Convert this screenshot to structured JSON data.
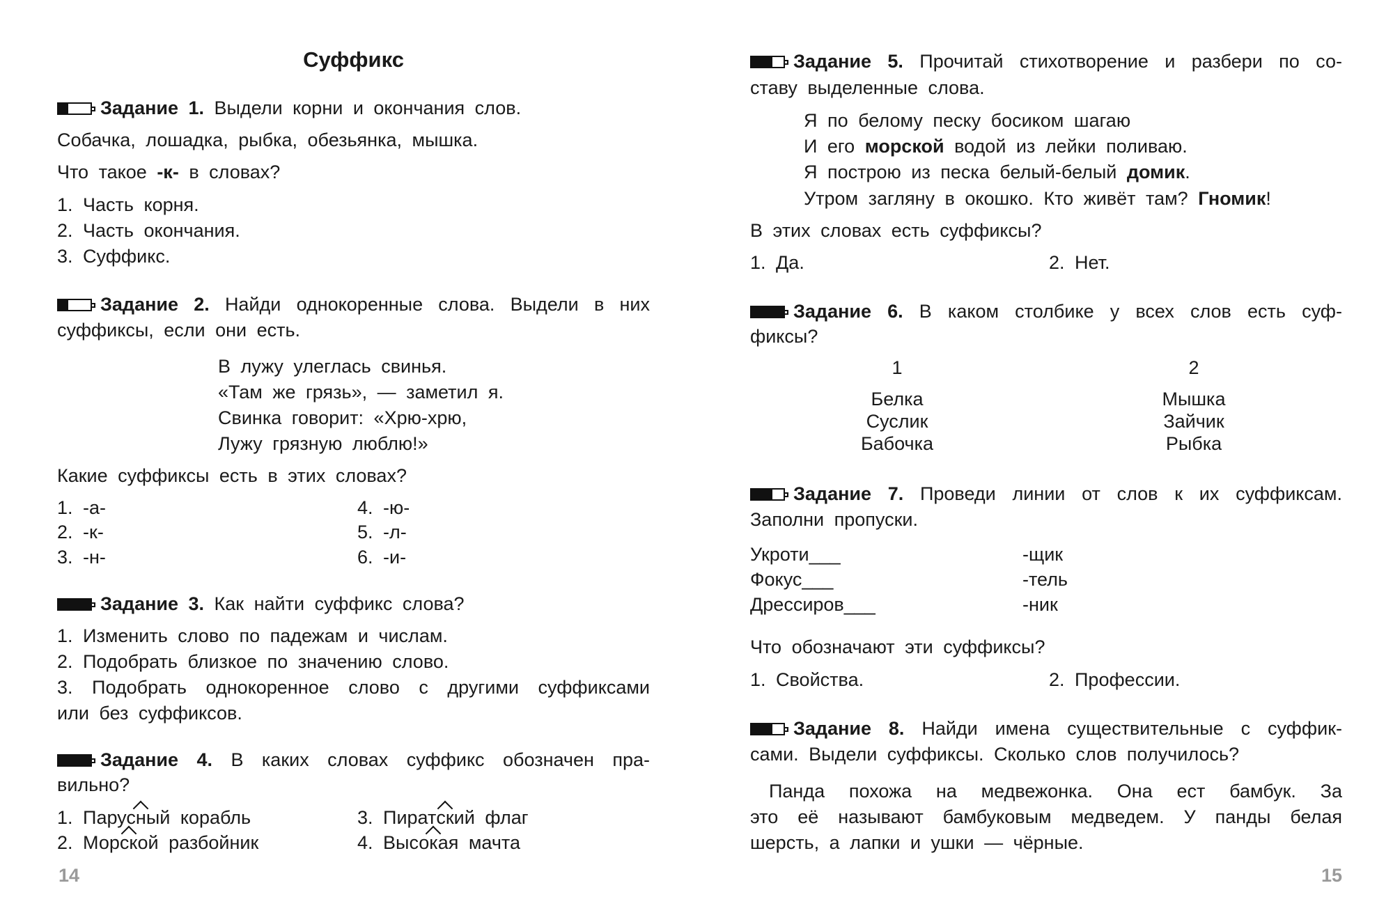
{
  "left": {
    "title": "Суффикс",
    "page": "14",
    "task1": {
      "label": "Задание 1.",
      "level": 0.3,
      "text": "Выдели корни и окончания слов.",
      "words": "Собачка, лошадка, рыбка, обезьянка, мышка.",
      "q_pre": "Что такое ",
      "q_bold": "-к-",
      "q_post": " в словах?",
      "options": [
        "1. Часть корня.",
        "2. Часть окончания.",
        "3. Суффикс."
      ]
    },
    "task2": {
      "label": "Задание 2.",
      "level": 0.3,
      "text1": "Найди однокоренные слова. Выдели в них",
      "text2": "суффиксы, если они есть.",
      "poem": [
        "В лужу улеглась свинья.",
        "«Там же грязь», — заметил я.",
        "Свинка говорит: «Хрю-хрю,",
        "Лужу грязную люблю!»"
      ],
      "question": "Какие суффиксы есть в этих словах?",
      "options": [
        "1. -а-",
        "2. -к-",
        "3. -н-",
        "4. -ю-",
        "5. -л-",
        "6. -и-"
      ]
    },
    "task3": {
      "label": "Задание 3.",
      "level": 1,
      "text": "Как найти суффикс слова?",
      "options": [
        "1. Изменить слово по падежам и числам.",
        "2. Подобрать близкое по значению слово.",
        "3. Подобрать однокоренное слово с другими суффиксами",
        "или без суффиксов."
      ]
    },
    "task4": {
      "label": "Задание 4.",
      "level": 1,
      "text1": "В каких словах суффикс обозначен пра-",
      "text2": "вильно?",
      "options": [
        {
          "num": "1.",
          "pre": "Парус",
          "suf": "н",
          "post": "ый",
          "rest": " корабль"
        },
        {
          "num": "2.",
          "pre": "Мор",
          "suf": "ск",
          "post": "ой",
          "rest": " разбойник"
        },
        {
          "num": "3.",
          "pre": "Пират",
          "suf": "ск",
          "post": "ий",
          "rest": " флаг"
        },
        {
          "num": "4.",
          "pre": "Высо",
          "suf": "к",
          "post": "ая",
          "rest": " мачта"
        }
      ]
    }
  },
  "right": {
    "page": "15",
    "task5": {
      "label": "Задание 5.",
      "level": 0.65,
      "text1": "Прочитай стихотворение и разбери по со-",
      "text2": "ставу выделенные слова.",
      "poem": {
        "l1": "Я по белому песку босиком шагаю",
        "l2_pre": "И его ",
        "l2_bold": "морской",
        "l2_post": " водой из лейки поливаю.",
        "l3_pre": "Я построю из песка белый-белый ",
        "l3_bold": "домик",
        "l3_post": ".",
        "l4_pre": "Утром загляну в окошко. Кто живёт там? ",
        "l4_bold": "Гномик",
        "l4_post": "!"
      },
      "question": "В этих словах есть суффиксы?",
      "options": [
        "1. Да.",
        "2. Нет."
      ]
    },
    "task6": {
      "label": "Задание 6.",
      "level": 1,
      "text1": "В каком столбике у всех слов есть суф-",
      "text2": "фиксы?",
      "col1": {
        "head": "1",
        "words": [
          "Белка",
          "Суслик",
          "Бабочка"
        ]
      },
      "col2": {
        "head": "2",
        "words": [
          "Мышка",
          "Зайчик",
          "Рыбка"
        ]
      }
    },
    "task7": {
      "label": "Задание 7.",
      "level": 0.65,
      "text1": "Проведи линии от слов к их суффиксам.",
      "text2": "Заполни пропуски.",
      "words": [
        "Укроти___",
        "Фокус___",
        "Дрессиров___"
      ],
      "suffixes": [
        "-щик",
        "-тель",
        "-ник"
      ],
      "question": "Что обозначают эти суффиксы?",
      "options": [
        "1. Свойства.",
        "2. Профессии."
      ]
    },
    "task8": {
      "label": "Задание 8.",
      "level": 0.65,
      "text1": "Найди имена существительные с суффик-",
      "text2": "сами. Выдели суффиксы. Сколько слов получилось?",
      "para": [
        "Панда похожа на медвежонка. Она ест бамбук. За",
        "это её называют бамбуковым медведем. У панды белая",
        "шерсть, а лапки и ушки — чёрные."
      ]
    }
  }
}
